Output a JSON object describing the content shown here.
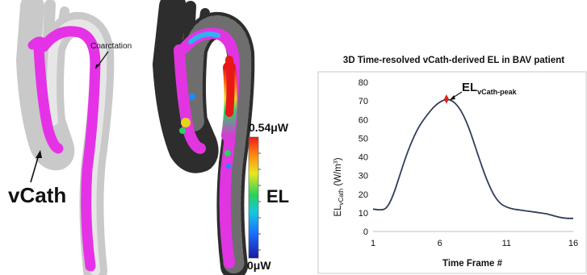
{
  "left_panel": {
    "coarctation_label": "Coarctation",
    "vcath_label": "vCath"
  },
  "middle_panel": {
    "colorbar_max": "0.54μW",
    "colorbar_min": "0μW",
    "colorbar_title": "EL"
  },
  "chart_data": {
    "type": "line",
    "title": "3D Time-resolved vCath-derived EL in BAV patient",
    "xlabel": "Time Frame #",
    "ylabel_base": "EL",
    "ylabel_sub": "vCath",
    "ylabel_unit_open": "(W/m",
    "ylabel_unit_sup": "3",
    "ylabel_unit_close": ")",
    "xlim": [
      1,
      16
    ],
    "ylim": [
      0,
      80
    ],
    "xticks": [
      1,
      6,
      11,
      16
    ],
    "yticks": [
      0,
      10,
      20,
      30,
      40,
      50,
      60,
      70,
      80
    ],
    "x": [
      1,
      1.5,
      2,
      2.5,
      3,
      3.5,
      4,
      4.5,
      5,
      5.5,
      6,
      6.5,
      7,
      7.5,
      8,
      8.5,
      9,
      9.5,
      10,
      10.5,
      11,
      11.5,
      12,
      12.5,
      13,
      13.5,
      14,
      14.5,
      15,
      15.5,
      16
    ],
    "y": [
      12,
      11.5,
      12,
      19,
      30,
      41,
      50,
      57,
      62,
      66.5,
      69.5,
      71,
      70,
      66,
      59,
      49,
      38,
      28,
      20,
      15,
      13,
      12,
      11.5,
      11,
      10.5,
      10,
      9.5,
      8.5,
      7.5,
      7,
      7
    ],
    "peak": {
      "x": 6.5,
      "y": 71,
      "label_base": "EL",
      "label_sub": "vCath-peak"
    },
    "grid": false,
    "line_color": "#2f3e5b",
    "peak_color": "#e0201f"
  }
}
